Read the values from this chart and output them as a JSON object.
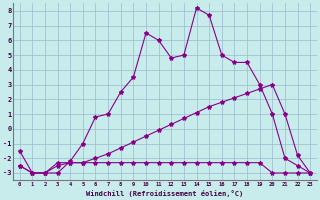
{
  "xlabel": "Windchill (Refroidissement éolien,°C)",
  "bg_color": "#c8ecec",
  "line_color": "#880088",
  "grid_color": "#99bbcc",
  "xlim": [
    -0.5,
    23.5
  ],
  "ylim": [
    -3.5,
    8.5
  ],
  "xticks": [
    0,
    1,
    2,
    3,
    4,
    5,
    6,
    7,
    8,
    9,
    10,
    11,
    12,
    13,
    14,
    15,
    16,
    17,
    18,
    19,
    20,
    21,
    22,
    23
  ],
  "yticks": [
    -3,
    -2,
    -1,
    0,
    1,
    2,
    3,
    4,
    5,
    6,
    7,
    8
  ],
  "line1_x": [
    0,
    1,
    2,
    3,
    4,
    5,
    6,
    7,
    8,
    9,
    10,
    11,
    12,
    13,
    14,
    15,
    16,
    17,
    18,
    19,
    20,
    21,
    22,
    23
  ],
  "line1_y": [
    -2.5,
    -3,
    -3,
    -2.5,
    -2.3,
    -2.3,
    -2.3,
    -2.3,
    -2.3,
    -2.3,
    -2.3,
    -2.3,
    -2.3,
    -2.3,
    -2.3,
    -2.3,
    -2.3,
    -2.3,
    -2.3,
    -2.3,
    -3,
    -3,
    -3,
    -3
  ],
  "line2_x": [
    0,
    1,
    2,
    3,
    4,
    5,
    6,
    7,
    8,
    9,
    10,
    11,
    12,
    13,
    14,
    15,
    16,
    17,
    18,
    19,
    20,
    21,
    22,
    23
  ],
  "line2_y": [
    -2.5,
    -3,
    -3,
    -2.3,
    -2.3,
    -2.3,
    -2.0,
    -1.7,
    -1.3,
    -0.9,
    -0.5,
    -0.1,
    0.3,
    0.7,
    1.1,
    1.5,
    1.8,
    2.1,
    2.4,
    2.7,
    3.0,
    1.0,
    -1.8,
    -3
  ],
  "line3_x": [
    0,
    1,
    2,
    3,
    4,
    5,
    6,
    7,
    8,
    9,
    10,
    11,
    12,
    13,
    14,
    15,
    16,
    17,
    18,
    19,
    20,
    21,
    22,
    23
  ],
  "line3_y": [
    -1.5,
    -3,
    -3,
    -3,
    -2.2,
    -1.0,
    0.8,
    1.0,
    2.5,
    3.5,
    6.5,
    6.0,
    4.8,
    5.0,
    8.2,
    7.7,
    5.0,
    4.5,
    4.5,
    3.0,
    1.0,
    -2.0,
    -2.5,
    -3
  ],
  "marker": "*",
  "markersize": 3,
  "linewidth": 0.8
}
